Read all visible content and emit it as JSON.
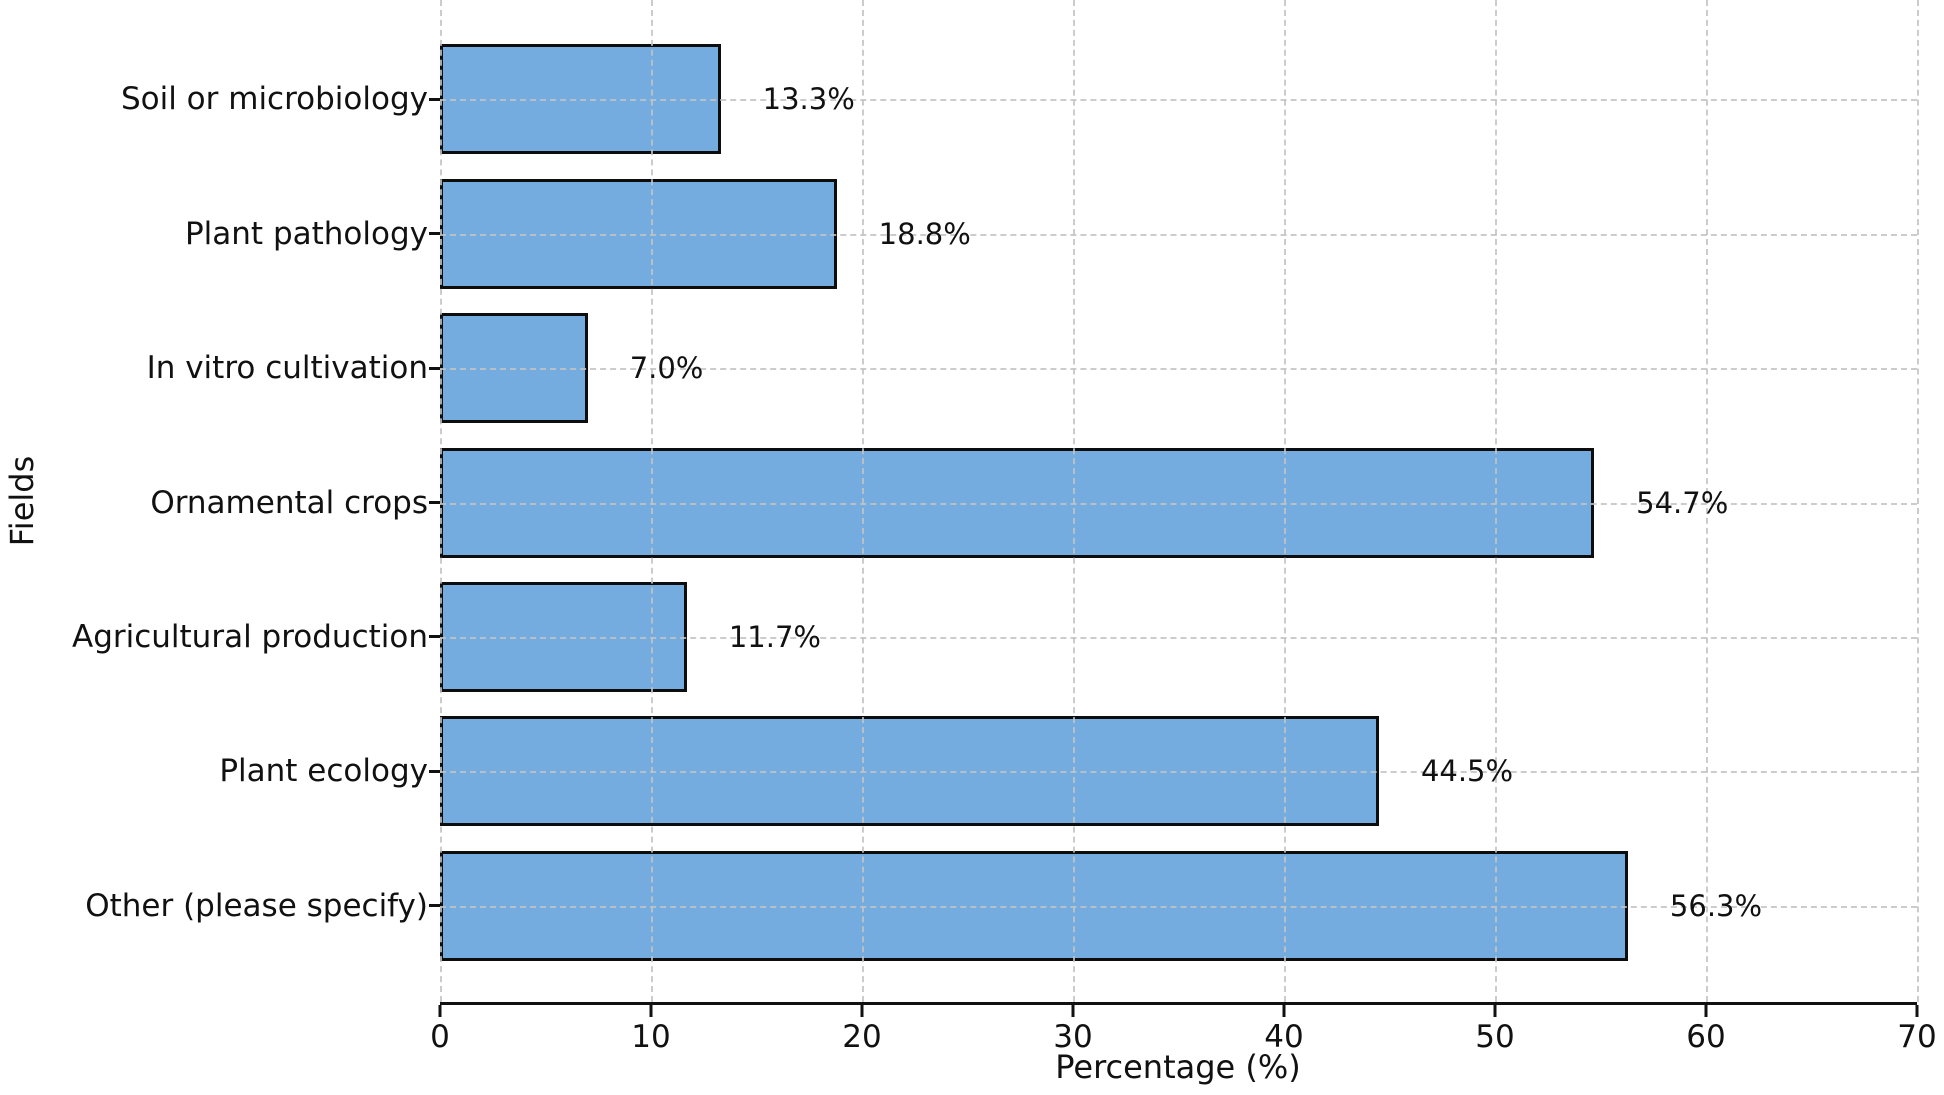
{
  "chart_data": {
    "type": "bar",
    "orientation": "horizontal",
    "title": "",
    "xlabel": "Percentage (%)",
    "ylabel": "Fields",
    "categories": [
      "Soil or microbiology",
      "Plant pathology",
      "In vitro cultivation",
      "Ornamental crops",
      "Agricultural production",
      "Plant ecology",
      "Other (please specify)"
    ],
    "values": [
      13.3,
      18.8,
      7.0,
      54.7,
      11.7,
      44.5,
      56.3
    ],
    "value_labels": [
      "13.3%",
      "18.8%",
      "7.0%",
      "54.7%",
      "11.7%",
      "44.5%",
      "56.3%"
    ],
    "xlim": [
      0,
      70
    ],
    "xticks": [
      0,
      10,
      20,
      30,
      40,
      50,
      60,
      70
    ],
    "xtick_labels": [
      "0",
      "10",
      "20",
      "30",
      "40",
      "50",
      "60",
      "70"
    ],
    "grid": "dashed, vertical at xticks and horizontal at category centers",
    "legend": "none",
    "bar_color": "#74ACDF",
    "bar_edge_color": "#0d0d0d",
    "gridline_color": "#c3c3c3",
    "axis_color": "#111111",
    "text_color": "#111111",
    "background_color": "#ffffff"
  }
}
